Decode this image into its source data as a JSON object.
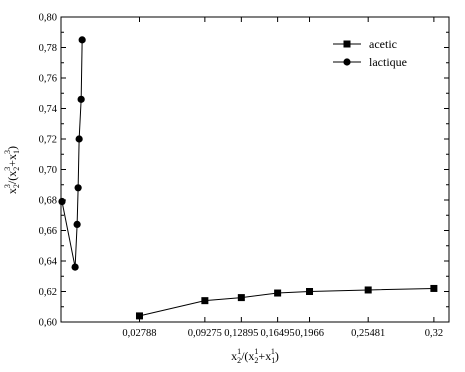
{
  "chart_data": {
    "type": "scatter",
    "title": "",
    "xlabel": {
      "base": "x",
      "sub": "2",
      "sup": "1",
      "rest": "/(x",
      "sub2": "2",
      "sup2": "1",
      "mid": "+x",
      "sub3": "1",
      "sup3": "1",
      "end": ")"
    },
    "ylabel": {
      "base": "x",
      "sub": "2",
      "sup": "3",
      "rest": "/(x",
      "sub2": "2",
      "sup2": "3",
      "mid": "+x",
      "sub3": "1",
      "sup3": "3",
      "end": ")"
    },
    "xlim": [
      -0.05,
      0.335
    ],
    "ylim": [
      0.6,
      0.8
    ],
    "x_ticks": [
      {
        "value": 0.02788,
        "label": "0,02788"
      },
      {
        "value": 0.09275,
        "label": "0,09275"
      },
      {
        "value": 0.12895,
        "label": "0,12895"
      },
      {
        "value": 0.16495,
        "label": "0,16495"
      },
      {
        "value": 0.1966,
        "label": "0,1966"
      },
      {
        "value": 0.25481,
        "label": "0,25481"
      },
      {
        "value": 0.32,
        "label": "0,32"
      }
    ],
    "y_ticks": [
      {
        "value": 0.6,
        "label": "0,60"
      },
      {
        "value": 0.62,
        "label": "0,62"
      },
      {
        "value": 0.64,
        "label": "0,64"
      },
      {
        "value": 0.66,
        "label": "0,66"
      },
      {
        "value": 0.68,
        "label": "0,68"
      },
      {
        "value": 0.7,
        "label": "0,70"
      },
      {
        "value": 0.72,
        "label": "0,72"
      },
      {
        "value": 0.74,
        "label": "0,74"
      },
      {
        "value": 0.76,
        "label": "0,76"
      },
      {
        "value": 0.78,
        "label": "0,78"
      },
      {
        "value": 0.8,
        "label": "0,80"
      }
    ],
    "grid": false,
    "legend_position": "top-right",
    "series": [
      {
        "name": "acetic",
        "marker": "square",
        "color": "#000000",
        "x": [
          0.02788,
          0.09275,
          0.12895,
          0.16495,
          0.1966,
          0.25481,
          0.32
        ],
        "y": [
          0.604,
          0.614,
          0.616,
          0.619,
          0.62,
          0.621,
          0.622
        ]
      },
      {
        "name": "lactique",
        "marker": "circle",
        "color": "#000000",
        "x": [
          -0.049,
          -0.036,
          -0.034,
          -0.033,
          -0.032,
          -0.03,
          -0.029
        ],
        "y": [
          0.679,
          0.636,
          0.664,
          0.688,
          0.72,
          0.746,
          0.785
        ]
      }
    ]
  }
}
